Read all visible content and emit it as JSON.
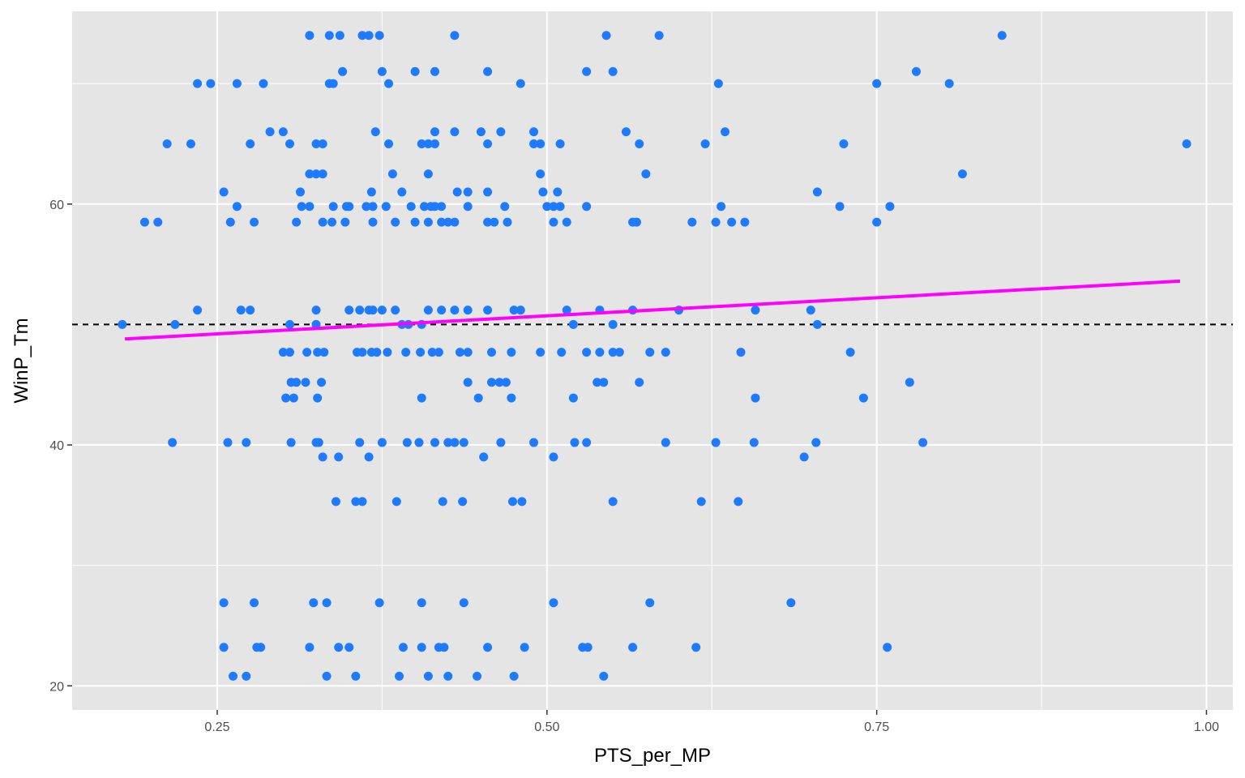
{
  "chart_data": {
    "type": "scatter",
    "title": "",
    "xlabel": "PTS_per_MP",
    "ylabel": "WinP_Tm",
    "xlim": [
      0.14,
      1.02
    ],
    "ylim": [
      18,
      76
    ],
    "x_ticks": [
      0.25,
      0.5,
      0.75,
      1.0
    ],
    "x_tick_labels": [
      "0.25",
      "0.50",
      "0.75",
      "1.00"
    ],
    "y_ticks": [
      20,
      40,
      60
    ],
    "y_tick_labels": [
      "20",
      "40",
      "60"
    ],
    "grid": true,
    "background": "#e5e5e5",
    "point_color": "#1e7bff",
    "trend_line": {
      "x": [
        0.18,
        0.98
      ],
      "y": [
        48.8,
        53.6
      ],
      "color": "#ff00ff"
    },
    "reference_line": {
      "y": 50,
      "style": "dashed",
      "color": "#000000"
    },
    "points": [
      [
        0.32,
        74
      ],
      [
        0.335,
        74
      ],
      [
        0.343,
        74
      ],
      [
        0.36,
        74
      ],
      [
        0.365,
        74
      ],
      [
        0.373,
        74
      ],
      [
        0.43,
        74
      ],
      [
        0.545,
        74
      ],
      [
        0.585,
        74
      ],
      [
        0.845,
        74
      ],
      [
        0.345,
        71
      ],
      [
        0.375,
        71
      ],
      [
        0.4,
        71
      ],
      [
        0.415,
        71
      ],
      [
        0.455,
        71
      ],
      [
        0.53,
        71
      ],
      [
        0.55,
        71
      ],
      [
        0.78,
        71
      ],
      [
        0.235,
        70
      ],
      [
        0.245,
        70
      ],
      [
        0.265,
        70
      ],
      [
        0.285,
        70
      ],
      [
        0.335,
        70
      ],
      [
        0.338,
        70
      ],
      [
        0.38,
        70
      ],
      [
        0.48,
        70
      ],
      [
        0.63,
        70
      ],
      [
        0.75,
        70
      ],
      [
        0.805,
        70
      ],
      [
        0.29,
        66
      ],
      [
        0.3,
        66
      ],
      [
        0.37,
        66
      ],
      [
        0.415,
        66
      ],
      [
        0.43,
        66
      ],
      [
        0.45,
        66
      ],
      [
        0.465,
        66
      ],
      [
        0.49,
        66
      ],
      [
        0.56,
        66
      ],
      [
        0.635,
        66
      ],
      [
        0.212,
        65
      ],
      [
        0.23,
        65
      ],
      [
        0.275,
        65
      ],
      [
        0.305,
        65
      ],
      [
        0.325,
        65
      ],
      [
        0.33,
        65
      ],
      [
        0.38,
        65
      ],
      [
        0.405,
        65
      ],
      [
        0.41,
        65
      ],
      [
        0.415,
        65
      ],
      [
        0.455,
        65
      ],
      [
        0.49,
        65
      ],
      [
        0.495,
        65
      ],
      [
        0.51,
        65
      ],
      [
        0.57,
        65
      ],
      [
        0.62,
        65
      ],
      [
        0.725,
        65
      ],
      [
        0.985,
        65
      ],
      [
        0.32,
        62.5
      ],
      [
        0.325,
        62.5
      ],
      [
        0.33,
        62.5
      ],
      [
        0.383,
        62.5
      ],
      [
        0.41,
        62.5
      ],
      [
        0.495,
        62.5
      ],
      [
        0.575,
        62.5
      ],
      [
        0.815,
        62.5
      ],
      [
        0.255,
        61
      ],
      [
        0.313,
        61
      ],
      [
        0.367,
        61
      ],
      [
        0.39,
        61
      ],
      [
        0.432,
        61
      ],
      [
        0.44,
        61
      ],
      [
        0.455,
        61
      ],
      [
        0.497,
        61
      ],
      [
        0.508,
        61
      ],
      [
        0.705,
        61
      ],
      [
        0.265,
        59.8
      ],
      [
        0.314,
        59.8
      ],
      [
        0.32,
        59.8
      ],
      [
        0.338,
        59.8
      ],
      [
        0.348,
        59.8
      ],
      [
        0.35,
        59.8
      ],
      [
        0.363,
        59.8
      ],
      [
        0.368,
        59.8
      ],
      [
        0.378,
        59.8
      ],
      [
        0.397,
        59.8
      ],
      [
        0.407,
        59.8
      ],
      [
        0.412,
        59.8
      ],
      [
        0.415,
        59.8
      ],
      [
        0.42,
        59.8
      ],
      [
        0.44,
        59.8
      ],
      [
        0.468,
        59.8
      ],
      [
        0.5,
        59.8
      ],
      [
        0.505,
        59.8
      ],
      [
        0.51,
        59.8
      ],
      [
        0.53,
        59.8
      ],
      [
        0.632,
        59.8
      ],
      [
        0.722,
        59.8
      ],
      [
        0.76,
        59.8
      ],
      [
        0.195,
        58.5
      ],
      [
        0.205,
        58.5
      ],
      [
        0.26,
        58.5
      ],
      [
        0.278,
        58.5
      ],
      [
        0.31,
        58.5
      ],
      [
        0.33,
        58.5
      ],
      [
        0.337,
        58.5
      ],
      [
        0.347,
        58.5
      ],
      [
        0.368,
        58.5
      ],
      [
        0.385,
        58.5
      ],
      [
        0.4,
        58.5
      ],
      [
        0.41,
        58.5
      ],
      [
        0.42,
        58.5
      ],
      [
        0.425,
        58.5
      ],
      [
        0.43,
        58.5
      ],
      [
        0.455,
        58.5
      ],
      [
        0.46,
        58.5
      ],
      [
        0.47,
        58.5
      ],
      [
        0.505,
        58.5
      ],
      [
        0.515,
        58.5
      ],
      [
        0.565,
        58.5
      ],
      [
        0.568,
        58.5
      ],
      [
        0.61,
        58.5
      ],
      [
        0.628,
        58.5
      ],
      [
        0.64,
        58.5
      ],
      [
        0.65,
        58.5
      ],
      [
        0.75,
        58.5
      ],
      [
        0.235,
        51.2
      ],
      [
        0.268,
        51.2
      ],
      [
        0.275,
        51.2
      ],
      [
        0.325,
        51.2
      ],
      [
        0.35,
        51.2
      ],
      [
        0.358,
        51.2
      ],
      [
        0.365,
        51.2
      ],
      [
        0.368,
        51.2
      ],
      [
        0.375,
        51.2
      ],
      [
        0.385,
        51.2
      ],
      [
        0.41,
        51.2
      ],
      [
        0.42,
        51.2
      ],
      [
        0.43,
        51.2
      ],
      [
        0.44,
        51.2
      ],
      [
        0.455,
        51.2
      ],
      [
        0.475,
        51.2
      ],
      [
        0.48,
        51.2
      ],
      [
        0.515,
        51.2
      ],
      [
        0.54,
        51.2
      ],
      [
        0.565,
        51.2
      ],
      [
        0.6,
        51.2
      ],
      [
        0.658,
        51.2
      ],
      [
        0.7,
        51.2
      ],
      [
        0.178,
        50
      ],
      [
        0.218,
        50
      ],
      [
        0.305,
        50
      ],
      [
        0.325,
        50
      ],
      [
        0.39,
        50
      ],
      [
        0.395,
        50
      ],
      [
        0.405,
        50
      ],
      [
        0.52,
        50
      ],
      [
        0.55,
        50
      ],
      [
        0.705,
        50
      ],
      [
        0.3,
        47.7
      ],
      [
        0.305,
        47.7
      ],
      [
        0.318,
        47.7
      ],
      [
        0.326,
        47.7
      ],
      [
        0.331,
        47.7
      ],
      [
        0.356,
        47.7
      ],
      [
        0.36,
        47.7
      ],
      [
        0.367,
        47.7
      ],
      [
        0.371,
        47.7
      ],
      [
        0.379,
        47.7
      ],
      [
        0.393,
        47.7
      ],
      [
        0.404,
        47.7
      ],
      [
        0.413,
        47.7
      ],
      [
        0.418,
        47.7
      ],
      [
        0.434,
        47.7
      ],
      [
        0.44,
        47.7
      ],
      [
        0.458,
        47.7
      ],
      [
        0.473,
        47.7
      ],
      [
        0.495,
        47.7
      ],
      [
        0.511,
        47.7
      ],
      [
        0.53,
        47.7
      ],
      [
        0.54,
        47.7
      ],
      [
        0.55,
        47.7
      ],
      [
        0.555,
        47.7
      ],
      [
        0.578,
        47.7
      ],
      [
        0.59,
        47.7
      ],
      [
        0.647,
        47.7
      ],
      [
        0.73,
        47.7
      ],
      [
        0.306,
        45.2
      ],
      [
        0.31,
        45.2
      ],
      [
        0.317,
        45.2
      ],
      [
        0.329,
        45.2
      ],
      [
        0.44,
        45.2
      ],
      [
        0.458,
        45.2
      ],
      [
        0.464,
        45.2
      ],
      [
        0.469,
        45.2
      ],
      [
        0.538,
        45.2
      ],
      [
        0.543,
        45.2
      ],
      [
        0.57,
        45.2
      ],
      [
        0.775,
        45.2
      ],
      [
        0.302,
        43.9
      ],
      [
        0.308,
        43.9
      ],
      [
        0.326,
        43.9
      ],
      [
        0.405,
        43.9
      ],
      [
        0.448,
        43.9
      ],
      [
        0.473,
        43.9
      ],
      [
        0.52,
        43.9
      ],
      [
        0.658,
        43.9
      ],
      [
        0.74,
        43.9
      ],
      [
        0.216,
        40.2
      ],
      [
        0.258,
        40.2
      ],
      [
        0.272,
        40.2
      ],
      [
        0.306,
        40.2
      ],
      [
        0.325,
        40.2
      ],
      [
        0.327,
        40.2
      ],
      [
        0.358,
        40.2
      ],
      [
        0.375,
        40.2
      ],
      [
        0.394,
        40.2
      ],
      [
        0.403,
        40.2
      ],
      [
        0.415,
        40.2
      ],
      [
        0.425,
        40.2
      ],
      [
        0.43,
        40.2
      ],
      [
        0.437,
        40.2
      ],
      [
        0.465,
        40.2
      ],
      [
        0.49,
        40.2
      ],
      [
        0.521,
        40.2
      ],
      [
        0.53,
        40.2
      ],
      [
        0.59,
        40.2
      ],
      [
        0.628,
        40.2
      ],
      [
        0.657,
        40.2
      ],
      [
        0.704,
        40.2
      ],
      [
        0.785,
        40.2
      ],
      [
        0.33,
        39
      ],
      [
        0.342,
        39
      ],
      [
        0.365,
        39
      ],
      [
        0.452,
        39
      ],
      [
        0.505,
        39
      ],
      [
        0.695,
        39
      ],
      [
        0.34,
        35.3
      ],
      [
        0.355,
        35.3
      ],
      [
        0.36,
        35.3
      ],
      [
        0.386,
        35.3
      ],
      [
        0.421,
        35.3
      ],
      [
        0.436,
        35.3
      ],
      [
        0.474,
        35.3
      ],
      [
        0.481,
        35.3
      ],
      [
        0.55,
        35.3
      ],
      [
        0.617,
        35.3
      ],
      [
        0.645,
        35.3
      ],
      [
        0.255,
        26.9
      ],
      [
        0.278,
        26.9
      ],
      [
        0.323,
        26.9
      ],
      [
        0.333,
        26.9
      ],
      [
        0.373,
        26.9
      ],
      [
        0.405,
        26.9
      ],
      [
        0.437,
        26.9
      ],
      [
        0.505,
        26.9
      ],
      [
        0.578,
        26.9
      ],
      [
        0.685,
        26.9
      ],
      [
        0.255,
        23.2
      ],
      [
        0.28,
        23.2
      ],
      [
        0.283,
        23.2
      ],
      [
        0.32,
        23.2
      ],
      [
        0.342,
        23.2
      ],
      [
        0.35,
        23.2
      ],
      [
        0.391,
        23.2
      ],
      [
        0.405,
        23.2
      ],
      [
        0.418,
        23.2
      ],
      [
        0.422,
        23.2
      ],
      [
        0.455,
        23.2
      ],
      [
        0.483,
        23.2
      ],
      [
        0.527,
        23.2
      ],
      [
        0.531,
        23.2
      ],
      [
        0.565,
        23.2
      ],
      [
        0.613,
        23.2
      ],
      [
        0.758,
        23.2
      ],
      [
        0.262,
        20.8
      ],
      [
        0.272,
        20.8
      ],
      [
        0.333,
        20.8
      ],
      [
        0.355,
        20.8
      ],
      [
        0.388,
        20.8
      ],
      [
        0.41,
        20.8
      ],
      [
        0.425,
        20.8
      ],
      [
        0.447,
        20.8
      ],
      [
        0.475,
        20.8
      ],
      [
        0.543,
        20.8
      ]
    ]
  }
}
